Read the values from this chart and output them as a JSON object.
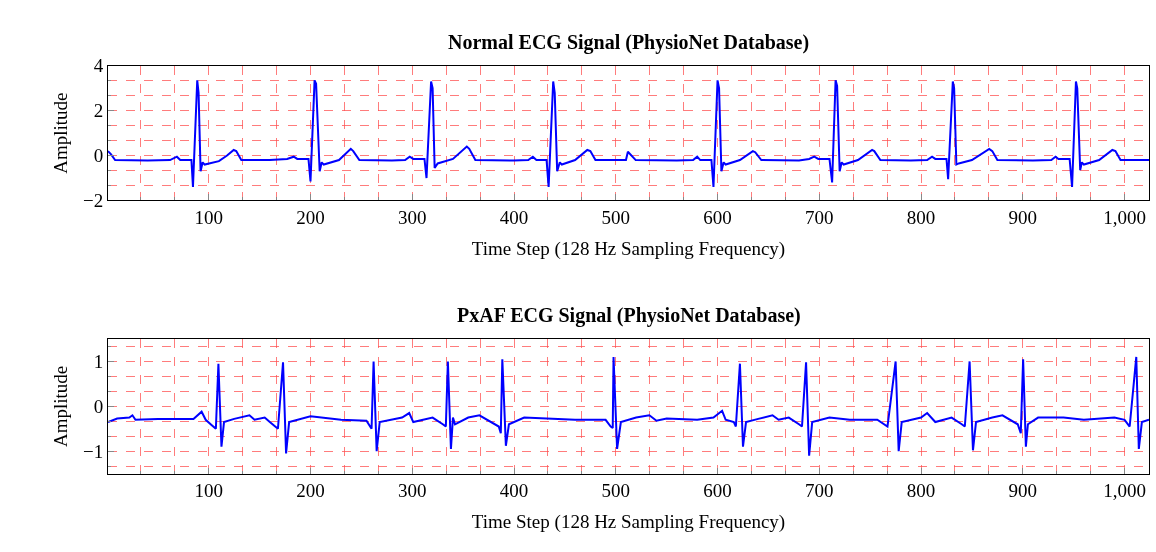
{
  "chart_data": [
    {
      "type": "line",
      "title": "Normal ECG Signal (PhysioNet Database)",
      "xlabel": "Time Step (128 Hz Sampling Frequency)",
      "ylabel": "Amplitude",
      "xlim": [
        1,
        1024
      ],
      "ylim": [
        -2,
        4
      ],
      "xticks": [
        100,
        200,
        300,
        400,
        500,
        600,
        700,
        800,
        900,
        {
          "value": 1000,
          "label": "1,000"
        }
      ],
      "yticks": [
        -2,
        0,
        2,
        4
      ],
      "grid": true,
      "line_style": "solid",
      "series": [
        {
          "color": "#0000ff",
          "x": [
            1,
            4,
            8,
            40,
            62,
            68.7,
            72,
            83,
            84.5,
            88.7,
            90,
            92,
            94,
            96,
            110,
            118,
            124.5,
            127,
            132,
            160,
            177,
            183.5,
            187,
            198,
            200,
            204,
            205.5,
            209,
            211,
            213,
            228,
            239.6,
            242,
            248,
            280,
            293,
            297.5,
            301,
            312,
            314,
            318.5,
            320,
            322,
            325,
            340,
            353.6,
            356,
            362,
            400,
            414,
            418.5,
            422,
            432,
            434,
            438.5,
            440,
            442.4,
            445,
            447,
            460,
            472,
            475,
            480,
            510,
            511.9,
            519.6,
            560,
            576,
            580,
            583,
            594,
            596,
            600,
            601.5,
            603.8,
            606,
            608,
            622,
            634.7,
            637,
            643,
            680,
            690,
            695,
            699,
            710,
            712.6,
            716,
            717.5,
            720,
            722,
            724,
            738,
            751.9,
            754,
            760,
            790,
            806,
            810.8,
            814,
            825,
            826.6,
            831.2,
            832.5,
            834.7,
            837,
            850,
            867,
            870,
            875,
            910,
            928,
            932.2,
            935,
            946,
            948.4,
            952.2,
            953.5,
            956.4,
            958,
            960,
            975,
            988,
            991,
            996,
            1024
          ],
          "values": [
            0.2,
            0.05,
            -0.2,
            -0.22,
            -0.2,
            -0.05,
            -0.2,
            -0.2,
            -1.4,
            3.35,
            2.8,
            -0.7,
            -0.3,
            -0.4,
            -0.25,
            0,
            0.25,
            0.2,
            -0.2,
            -0.2,
            -0.15,
            -0.05,
            -0.15,
            -0.15,
            -1.15,
            3.35,
            3.2,
            -0.7,
            -0.3,
            -0.4,
            -0.2,
            0.3,
            0.2,
            -0.2,
            -0.22,
            -0.2,
            -0.05,
            -0.15,
            -0.15,
            -1.0,
            3.3,
            3.0,
            -0.55,
            -0.35,
            -0.15,
            0.4,
            0.3,
            -0.2,
            -0.22,
            -0.2,
            -0.05,
            -0.2,
            -0.2,
            -1.4,
            3.3,
            2.8,
            -0.7,
            -0.3,
            -0.4,
            -0.2,
            0.25,
            0.2,
            -0.2,
            -0.2,
            0.17,
            -0.2,
            -0.22,
            -0.2,
            -0.05,
            -0.2,
            -0.2,
            -1.4,
            3.35,
            3.0,
            -0.7,
            -0.3,
            -0.4,
            -0.2,
            0.2,
            0.15,
            -0.2,
            -0.22,
            -0.15,
            -0.05,
            -0.15,
            -0.15,
            -1.2,
            3.35,
            3.1,
            -0.7,
            -0.3,
            -0.4,
            -0.2,
            0.25,
            0.2,
            -0.2,
            -0.22,
            -0.2,
            -0.05,
            -0.15,
            -0.15,
            -1.05,
            3.3,
            3.0,
            -0.4,
            -0.35,
            -0.2,
            0.3,
            0.2,
            -0.2,
            -0.22,
            -0.2,
            -0.05,
            -0.15,
            -0.15,
            -1.4,
            3.3,
            3.0,
            -0.65,
            -0.3,
            -0.4,
            -0.2,
            0.25,
            0.2,
            -0.2,
            -0.2
          ]
        }
      ]
    },
    {
      "type": "line",
      "title": "PxAF ECG Signal (PhysioNet Database)",
      "xlabel": "Time Step (128 Hz Sampling Frequency)",
      "ylabel": "Amplitude",
      "xlim": [
        1,
        1024
      ],
      "ylim": [
        -1.5,
        1.5
      ],
      "xticks": [
        100,
        200,
        300,
        400,
        500,
        600,
        700,
        800,
        900,
        {
          "value": 1000,
          "label": "1,000"
        }
      ],
      "yticks": [
        -1,
        0,
        1
      ],
      "grid": true,
      "line_style": "solid",
      "series": [
        {
          "color": "#0000ff",
          "x": [
            1,
            10,
            22,
            25,
            28,
            50,
            85,
            93,
            97,
            103,
            107,
            109.5,
            112.5,
            115,
            125,
            140,
            145,
            155,
            160,
            168,
            173,
            176,
            179,
            200,
            230,
            255,
            260,
            262,
            265,
            268,
            290,
            297,
            301,
            320,
            330,
            333,
            335,
            338,
            340,
            342,
            355,
            366,
            385,
            387,
            388.5,
            392,
            395,
            410,
            460,
            490,
            495,
            497,
            497.8,
            501.3,
            505,
            520,
            533,
            540,
            550,
            580,
            596,
            604.5,
            608,
            616,
            618,
            622,
            625,
            628,
            640,
            654,
            660,
            670,
            680,
            683,
            687,
            690,
            693,
            710,
            730,
            757,
            767,
            775,
            778,
            781,
            800,
            806,
            814,
            830,
            840,
            843,
            847.7,
            851,
            854,
            870,
            880,
            895,
            898,
            900.3,
            903,
            905,
            915,
            940,
            960,
            990,
            1000,
            1005,
            1011.5,
            1014,
            1017,
            1024
          ],
          "values": [
            -0.35,
            -0.27,
            -0.25,
            -0.2,
            -0.3,
            -0.28,
            -0.28,
            -0.12,
            -0.3,
            -0.42,
            -0.5,
            0.95,
            -0.9,
            -0.35,
            -0.28,
            -0.2,
            -0.3,
            -0.25,
            -0.35,
            -0.5,
            0.98,
            -1.05,
            -0.35,
            -0.22,
            -0.3,
            -0.32,
            -0.5,
            1.0,
            -1.0,
            -0.35,
            -0.25,
            -0.15,
            -0.35,
            -0.25,
            -0.4,
            -0.45,
            1.0,
            -0.95,
            -0.25,
            -0.4,
            -0.25,
            -0.2,
            -0.45,
            -0.6,
            1.05,
            -0.88,
            -0.4,
            -0.25,
            -0.3,
            -0.3,
            -0.45,
            -0.48,
            1.1,
            -0.95,
            -0.35,
            -0.25,
            -0.2,
            -0.32,
            -0.27,
            -0.3,
            -0.25,
            -0.1,
            -0.3,
            -0.35,
            -0.45,
            0.95,
            -0.9,
            -0.35,
            -0.28,
            -0.2,
            -0.3,
            -0.25,
            -0.4,
            -0.45,
            0.98,
            -1.1,
            -0.35,
            -0.25,
            -0.3,
            -0.3,
            -0.45,
            1.0,
            -1.0,
            -0.35,
            -0.25,
            -0.15,
            -0.35,
            -0.25,
            -0.4,
            -0.45,
            1.0,
            -0.98,
            -0.35,
            -0.25,
            -0.2,
            -0.4,
            -0.6,
            1.05,
            -0.9,
            -0.4,
            -0.25,
            -0.25,
            -0.3,
            -0.25,
            -0.3,
            -0.45,
            1.1,
            -0.95,
            -0.35,
            -0.3
          ]
        }
      ]
    }
  ]
}
